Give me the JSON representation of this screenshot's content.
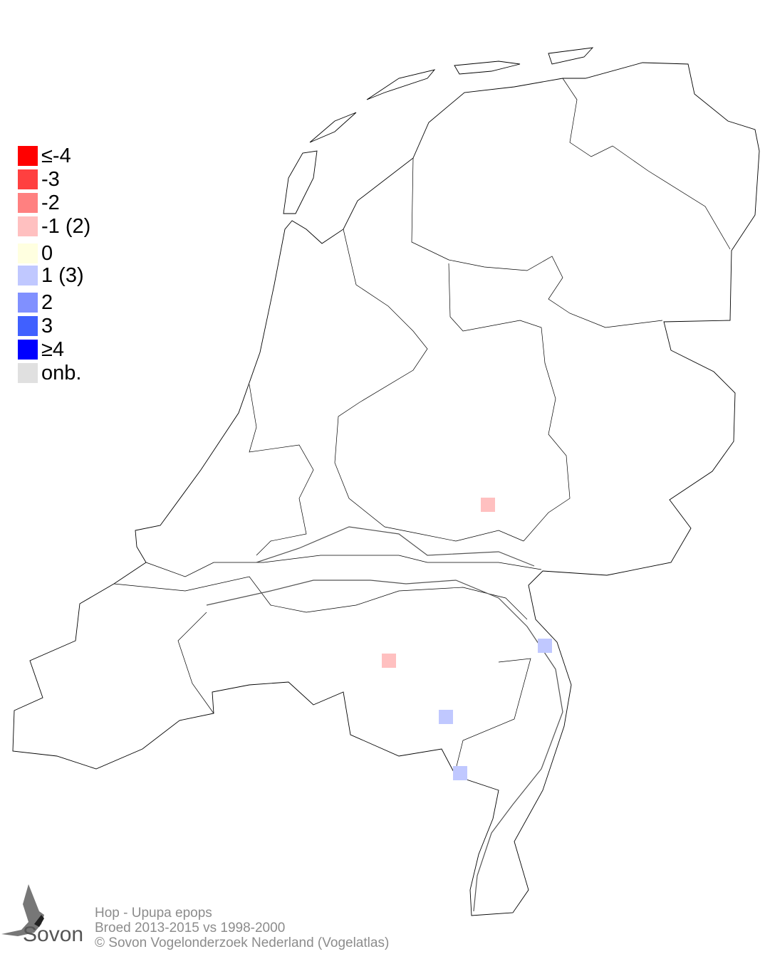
{
  "legend": [
    {
      "label": "≤-4",
      "color": "#ff0000"
    },
    {
      "label": "-3",
      "color": "#ff4040"
    },
    {
      "label": "-2",
      "color": "#ff8080"
    },
    {
      "label": "-1 (2)",
      "color": "#ffc0c0"
    },
    {
      "label": " 0",
      "color": "#ffffe0"
    },
    {
      "label": " 1 (3)",
      "color": "#c0c8ff"
    },
    {
      "label": " 2",
      "color": "#8090ff"
    },
    {
      "label": " 3",
      "color": "#4060ff"
    },
    {
      "label": "≥4",
      "color": "#0000ff"
    },
    {
      "label": "onb.",
      "color": "#e0e0e0"
    }
  ],
  "cells": [
    {
      "value": -1,
      "color": "#ffc0c0"
    },
    {
      "value": -1,
      "color": "#ffc0c0"
    },
    {
      "value": 1,
      "color": "#c0c8ff"
    },
    {
      "value": 1,
      "color": "#c0c8ff"
    },
    {
      "value": 1,
      "color": "#c0c8ff"
    }
  ],
  "caption": {
    "line1": "Hop - Upupa epops",
    "line2": "Broed 2013-2015 vs 1998-2000",
    "line3": "© Sovon Vogelonderzoek Nederland (Vogelatlas)"
  },
  "logo": {
    "text": "Sovon"
  }
}
